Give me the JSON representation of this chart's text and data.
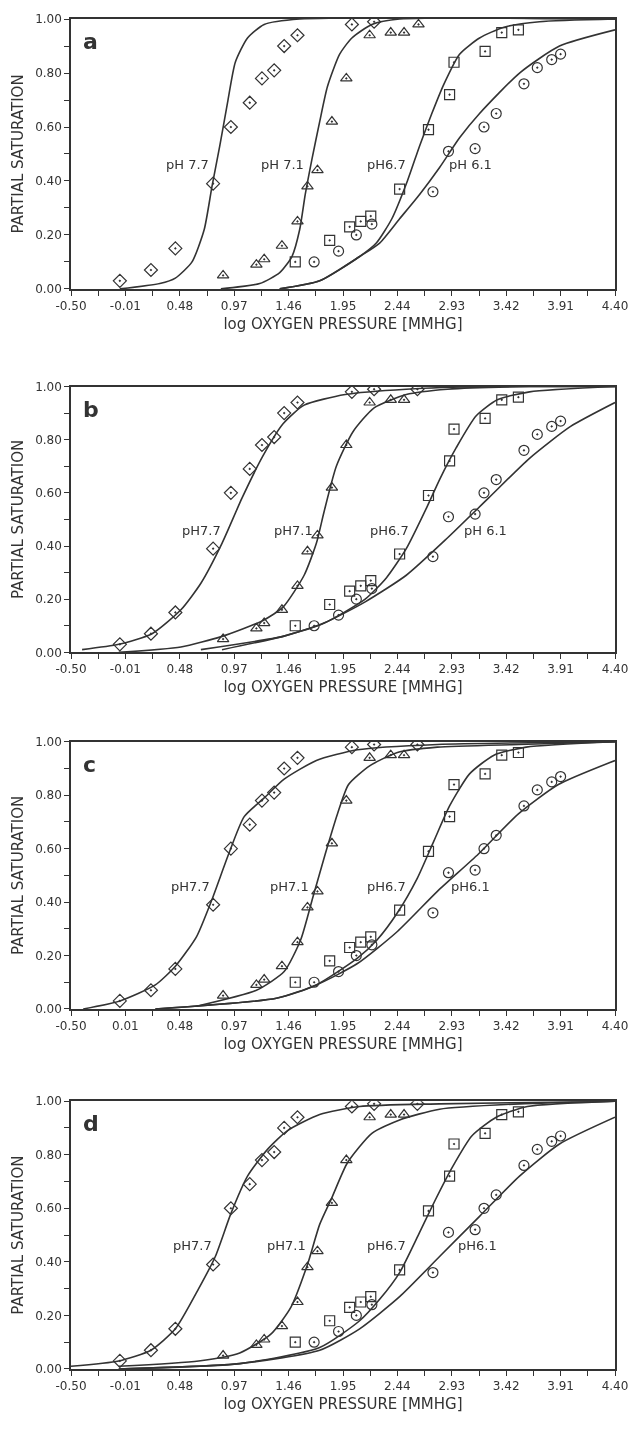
{
  "chart_data": [
    {
      "type": "scatter",
      "xlabel": "log OXYGEN PRESSURE [MMHG]",
      "ylabel": "PARTIAL SATURATION",
      "xlim": [
        -0.5,
        4.4
      ],
      "ylim": [
        0,
        1
      ],
      "xticks": [
        {
          "value": -0.5,
          "label": "-0.50"
        },
        {
          "value": -0.255,
          "label": null
        },
        {
          "value": -0.01,
          "label": "-0.01"
        },
        {
          "value": 0.235,
          "label": null
        },
        {
          "value": 0.48,
          "label": "0.48"
        },
        {
          "value": 0.725,
          "label": null
        },
        {
          "value": 0.97,
          "label": "0.97"
        },
        {
          "value": 1.215,
          "label": null
        },
        {
          "value": 1.46,
          "label": "1.46"
        },
        {
          "value": 1.705,
          "label": null
        },
        {
          "value": 1.95,
          "label": "1.95"
        },
        {
          "value": 2.195,
          "label": null
        },
        {
          "value": 2.44,
          "label": "2.44"
        },
        {
          "value": 2.685,
          "label": null
        },
        {
          "value": 2.93,
          "label": "2.93"
        },
        {
          "value": 3.175,
          "label": null
        },
        {
          "value": 3.42,
          "label": "3.42"
        },
        {
          "value": 3.665,
          "label": null
        },
        {
          "value": 3.91,
          "label": "3.91"
        },
        {
          "value": 4.155,
          "label": null
        },
        {
          "value": 4.4,
          "label": "4.40"
        }
      ],
      "yticks": [
        {
          "value": 0,
          "label": "0.00"
        },
        {
          "value": 0.1,
          "label": null
        },
        {
          "value": 0.2,
          "label": "0.20"
        },
        {
          "value": 0.3,
          "label": null
        },
        {
          "value": 0.4,
          "label": "0.40"
        },
        {
          "value": 0.5,
          "label": null
        },
        {
          "value": 0.6,
          "label": "0.60"
        },
        {
          "value": 0.7,
          "label": null
        },
        {
          "value": 0.8,
          "label": "0.80"
        },
        {
          "value": 0.9,
          "label": null
        },
        {
          "value": 1,
          "label": "1.00"
        }
      ],
      "annotations": [
        "a"
      ],
      "series": [
        {
          "marker": "diamond",
          "color": "#333333",
          "x": [
            -0.06,
            0.22,
            0.44,
            0.78,
            0.94,
            1.11,
            1.22,
            1.33,
            1.42,
            1.54,
            2.03,
            2.23
          ],
          "values": [
            0.03,
            0.07,
            0.15,
            0.39,
            0.6,
            0.69,
            0.78,
            0.81,
            0.9,
            0.94,
            0.98,
            0.99
          ]
        },
        {
          "marker": "triangle",
          "color": "#333333",
          "x": [
            0.87,
            1.17,
            1.24,
            1.4,
            1.54,
            1.63,
            1.72,
            1.85,
            1.98,
            2.19,
            2.38,
            2.5,
            2.63
          ],
          "values": [
            0.05,
            0.09,
            0.11,
            0.16,
            0.25,
            0.38,
            0.44,
            0.62,
            0.78,
            0.94,
            0.95,
            0.95,
            0.98
          ]
        },
        {
          "marker": "square",
          "color": "#333333",
          "x": [
            1.52,
            1.83,
            2.01,
            2.11,
            2.2,
            2.46,
            2.72,
            2.91,
            2.95,
            3.23,
            3.38,
            3.53
          ],
          "values": [
            0.1,
            0.18,
            0.23,
            0.25,
            0.27,
            0.37,
            0.59,
            0.72,
            0.84,
            0.88,
            0.95,
            0.96
          ]
        },
        {
          "marker": "circle",
          "color": "#333333",
          "x": [
            1.69,
            1.91,
            2.07,
            2.21,
            2.76,
            2.9,
            3.14,
            3.22,
            3.33,
            3.58,
            3.7,
            3.83,
            3.91
          ],
          "values": [
            0.1,
            0.14,
            0.2,
            0.24,
            0.36,
            0.51,
            0.52,
            0.6,
            0.65,
            0.76,
            0.82,
            0.85,
            0.87
          ]
        },
        {
          "type": "line",
          "name": "pH 7.7",
          "marker": "none",
          "color": "#333333",
          "x": [
            -0.06,
            0.3,
            0.44,
            0.59,
            0.7,
            0.77,
            0.84,
            0.91,
            0.98,
            1.09,
            1.24,
            1.56,
            4.4
          ],
          "values": [
            0,
            0.02,
            0.04,
            0.1,
            0.22,
            0.38,
            0.53,
            0.69,
            0.84,
            0.93,
            0.98,
            1,
            1
          ]
        },
        {
          "type": "line",
          "name": "pH 7.1",
          "marker": "none",
          "color": "#333333",
          "x": [
            0.85,
            1.2,
            1.38,
            1.49,
            1.56,
            1.61,
            1.67,
            1.74,
            1.81,
            1.92,
            2.03,
            2.21,
            2.46,
            4.4
          ],
          "values": [
            0,
            0.02,
            0.06,
            0.12,
            0.22,
            0.35,
            0.48,
            0.62,
            0.75,
            0.87,
            0.93,
            0.98,
            1,
            1
          ]
        },
        {
          "type": "line",
          "name": "pH6.7",
          "marker": "none",
          "color": "#333333",
          "x": [
            1.38,
            1.74,
            2.1,
            2.25,
            2.39,
            2.53,
            2.64,
            2.75,
            2.86,
            3.0,
            3.18,
            3.4,
            3.72,
            4.4
          ],
          "values": [
            0,
            0.03,
            0.12,
            0.17,
            0.26,
            0.4,
            0.53,
            0.65,
            0.76,
            0.87,
            0.93,
            0.97,
            0.99,
            1
          ]
        },
        {
          "type": "line",
          "name": "pH 6.1",
          "marker": "none",
          "color": "#333333",
          "x": [
            1.38,
            1.74,
            2.1,
            2.28,
            2.46,
            2.64,
            2.82,
            3.0,
            3.18,
            3.54,
            3.9,
            4.4
          ],
          "values": [
            0,
            0.03,
            0.12,
            0.17,
            0.26,
            0.35,
            0.45,
            0.56,
            0.65,
            0.8,
            0.9,
            0.96
          ]
        }
      ]
    },
    {
      "type": "scatter",
      "xlabel": "log OXYGEN PRESSURE [MMHG]",
      "ylabel": "PARTIAL SATURATION",
      "xlim": [
        -0.5,
        4.4
      ],
      "ylim": [
        0,
        1
      ],
      "xticks": [
        {
          "value": -0.5,
          "label": "-0.50"
        },
        {
          "value": -0.255,
          "label": null
        },
        {
          "value": -0.01,
          "label": "-0.01"
        },
        {
          "value": 0.235,
          "label": null
        },
        {
          "value": 0.48,
          "label": "0.48"
        },
        {
          "value": 0.725,
          "label": null
        },
        {
          "value": 0.97,
          "label": "0.97"
        },
        {
          "value": 1.215,
          "label": null
        },
        {
          "value": 1.46,
          "label": "1.46"
        },
        {
          "value": 1.705,
          "label": null
        },
        {
          "value": 1.95,
          "label": "1.95"
        },
        {
          "value": 2.195,
          "label": null
        },
        {
          "value": 2.44,
          "label": "2.44"
        },
        {
          "value": 2.685,
          "label": null
        },
        {
          "value": 2.93,
          "label": "2.93"
        },
        {
          "value": 3.175,
          "label": null
        },
        {
          "value": 3.42,
          "label": "3.42"
        },
        {
          "value": 3.665,
          "label": null
        },
        {
          "value": 3.91,
          "label": "3.91"
        },
        {
          "value": 4.155,
          "label": null
        },
        {
          "value": 4.4,
          "label": "4.40"
        }
      ],
      "yticks": [
        {
          "value": 0,
          "label": "0.00"
        },
        {
          "value": 0.1,
          "label": null
        },
        {
          "value": 0.2,
          "label": "0.20"
        },
        {
          "value": 0.3,
          "label": null
        },
        {
          "value": 0.4,
          "label": "0.40"
        },
        {
          "value": 0.5,
          "label": null
        },
        {
          "value": 0.6,
          "label": "0.60"
        },
        {
          "value": 0.7,
          "label": null
        },
        {
          "value": 0.8,
          "label": "0.80"
        },
        {
          "value": 0.9,
          "label": null
        },
        {
          "value": 1,
          "label": "1.00"
        }
      ],
      "annotations": [
        "b"
      ],
      "series": [
        {
          "marker": "diamond",
          "color": "#333333",
          "x": [
            -0.06,
            0.22,
            0.44,
            0.78,
            0.94,
            1.11,
            1.22,
            1.33,
            1.42,
            1.54,
            2.03,
            2.23,
            2.62
          ],
          "values": [
            0.03,
            0.07,
            0.15,
            0.39,
            0.6,
            0.69,
            0.78,
            0.81,
            0.9,
            0.94,
            0.98,
            0.99,
            0.99
          ]
        },
        {
          "marker": "triangle",
          "color": "#333333",
          "x": [
            0.87,
            1.17,
            1.24,
            1.4,
            1.54,
            1.63,
            1.72,
            1.85,
            1.98,
            2.19,
            2.38,
            2.5
          ],
          "values": [
            0.05,
            0.09,
            0.11,
            0.16,
            0.25,
            0.38,
            0.44,
            0.62,
            0.78,
            0.94,
            0.95,
            0.95
          ]
        },
        {
          "marker": "square",
          "color": "#333333",
          "x": [
            1.52,
            1.83,
            2.01,
            2.11,
            2.2,
            2.46,
            2.72,
            2.91,
            2.95,
            3.23,
            3.38,
            3.53
          ],
          "values": [
            0.1,
            0.18,
            0.23,
            0.25,
            0.27,
            0.37,
            0.59,
            0.72,
            0.84,
            0.88,
            0.95,
            0.96
          ]
        },
        {
          "marker": "circle",
          "color": "#333333",
          "x": [
            1.69,
            1.91,
            2.07,
            2.21,
            2.76,
            2.9,
            3.14,
            3.22,
            3.33,
            3.58,
            3.7,
            3.83,
            3.91
          ],
          "values": [
            0.1,
            0.14,
            0.2,
            0.24,
            0.36,
            0.51,
            0.52,
            0.6,
            0.65,
            0.76,
            0.82,
            0.85,
            0.87
          ]
        },
        {
          "type": "line",
          "name": "pH7.7",
          "marker": "none",
          "color": "#333333",
          "x": [
            -0.4,
            -0.07,
            0.23,
            0.49,
            0.67,
            0.86,
            1.04,
            1.23,
            1.41,
            1.6,
            1.97,
            2.52,
            3.26,
            4.4
          ],
          "values": [
            0.01,
            0.03,
            0.07,
            0.16,
            0.26,
            0.41,
            0.58,
            0.74,
            0.86,
            0.93,
            0.97,
            0.99,
            1,
            1
          ]
        },
        {
          "type": "line",
          "name": "pH7.1",
          "marker": "none",
          "color": "#333333",
          "x": [
            -0.07,
            0.49,
            0.86,
            1.23,
            1.41,
            1.6,
            1.71,
            1.78,
            1.89,
            2.04,
            2.23,
            2.52,
            2.89,
            3.63,
            4.4
          ],
          "values": [
            0,
            0.02,
            0.06,
            0.12,
            0.17,
            0.29,
            0.41,
            0.53,
            0.7,
            0.83,
            0.92,
            0.97,
            0.99,
            1,
            1
          ]
        },
        {
          "type": "line",
          "name": "pH6.7",
          "marker": "none",
          "color": "#333333",
          "x": [
            0.86,
            1.41,
            1.78,
            2.15,
            2.34,
            2.52,
            2.71,
            2.82,
            2.97,
            3.15,
            3.34,
            3.63,
            4.4
          ],
          "values": [
            0.01,
            0.06,
            0.11,
            0.2,
            0.28,
            0.39,
            0.55,
            0.65,
            0.77,
            0.89,
            0.95,
            0.98,
            1
          ]
        },
        {
          "type": "line",
          "name": "pH 6.1",
          "marker": "none",
          "color": "#333333",
          "x": [
            0.67,
            1.41,
            1.78,
            2.15,
            2.52,
            2.89,
            3.26,
            3.63,
            4.0,
            4.4
          ],
          "values": [
            0.01,
            0.06,
            0.11,
            0.19,
            0.29,
            0.43,
            0.58,
            0.73,
            0.85,
            0.94
          ]
        }
      ]
    },
    {
      "type": "scatter",
      "xlabel": "log OXYGEN PRESSURE [MMHG]",
      "ylabel": "PARTIAL SATURATION",
      "xlim": [
        -0.5,
        4.4
      ],
      "ylim": [
        0,
        1
      ],
      "xticks": [
        {
          "value": -0.5,
          "label": "-0.50"
        },
        {
          "value": -0.255,
          "label": null
        },
        {
          "value": -0.01,
          "label": "0.01"
        },
        {
          "value": 0.235,
          "label": null
        },
        {
          "value": 0.48,
          "label": "0.48"
        },
        {
          "value": 0.725,
          "label": null
        },
        {
          "value": 0.97,
          "label": "0.97"
        },
        {
          "value": 1.215,
          "label": null
        },
        {
          "value": 1.46,
          "label": "1.46"
        },
        {
          "value": 1.705,
          "label": null
        },
        {
          "value": 1.95,
          "label": "1.95"
        },
        {
          "value": 2.195,
          "label": null
        },
        {
          "value": 2.44,
          "label": "2.44"
        },
        {
          "value": 2.685,
          "label": null
        },
        {
          "value": 2.93,
          "label": "2.93"
        },
        {
          "value": 3.175,
          "label": null
        },
        {
          "value": 3.42,
          "label": "3.42"
        },
        {
          "value": 3.665,
          "label": null
        },
        {
          "value": 3.91,
          "label": "3.91"
        },
        {
          "value": 4.155,
          "label": null
        },
        {
          "value": 4.4,
          "label": "4.40"
        }
      ],
      "yticks": [
        {
          "value": 0,
          "label": "0.00"
        },
        {
          "value": 0.1,
          "label": null
        },
        {
          "value": 0.2,
          "label": "0.20"
        },
        {
          "value": 0.3,
          "label": null
        },
        {
          "value": 0.4,
          "label": "0.40"
        },
        {
          "value": 0.5,
          "label": null
        },
        {
          "value": 0.6,
          "label": "0.60"
        },
        {
          "value": 0.7,
          "label": null
        },
        {
          "value": 0.8,
          "label": "0.80"
        },
        {
          "value": 0.9,
          "label": null
        },
        {
          "value": 1,
          "label": "1.00"
        }
      ],
      "annotations": [
        "c"
      ],
      "series": [
        {
          "marker": "diamond",
          "color": "#333333",
          "x": [
            -0.06,
            0.22,
            0.44,
            0.78,
            0.94,
            1.11,
            1.22,
            1.33,
            1.42,
            1.54,
            2.03,
            2.23,
            2.62
          ],
          "values": [
            0.03,
            0.07,
            0.15,
            0.39,
            0.6,
            0.69,
            0.78,
            0.81,
            0.9,
            0.94,
            0.98,
            0.99,
            0.99
          ]
        },
        {
          "marker": "triangle",
          "color": "#333333",
          "x": [
            0.87,
            1.17,
            1.24,
            1.4,
            1.54,
            1.63,
            1.72,
            1.85,
            1.98,
            2.19,
            2.38,
            2.5
          ],
          "values": [
            0.05,
            0.09,
            0.11,
            0.16,
            0.25,
            0.38,
            0.44,
            0.62,
            0.78,
            0.94,
            0.95,
            0.95
          ]
        },
        {
          "marker": "square",
          "color": "#333333",
          "x": [
            1.52,
            1.83,
            2.01,
            2.11,
            2.2,
            2.46,
            2.72,
            2.91,
            2.95,
            3.23,
            3.38,
            3.53
          ],
          "values": [
            0.1,
            0.18,
            0.23,
            0.25,
            0.27,
            0.37,
            0.59,
            0.72,
            0.84,
            0.88,
            0.95,
            0.96
          ]
        },
        {
          "marker": "circle",
          "color": "#333333",
          "x": [
            1.69,
            1.91,
            2.07,
            2.21,
            2.76,
            2.9,
            3.14,
            3.22,
            3.33,
            3.58,
            3.7,
            3.83,
            3.91
          ],
          "values": [
            0.1,
            0.14,
            0.2,
            0.24,
            0.36,
            0.51,
            0.52,
            0.6,
            0.65,
            0.76,
            0.82,
            0.85,
            0.87
          ]
        },
        {
          "type": "line",
          "name": "pH7.7",
          "marker": "none",
          "color": "#333333",
          "x": [
            -0.39,
            -0.06,
            0.26,
            0.44,
            0.63,
            0.77,
            0.92,
            1.06,
            1.24,
            1.42,
            1.71,
            2.08,
            2.8,
            4.4
          ],
          "values": [
            0,
            0.03,
            0.09,
            0.16,
            0.27,
            0.41,
            0.58,
            0.72,
            0.79,
            0.86,
            0.93,
            0.97,
            0.99,
            1
          ]
        },
        {
          "type": "line",
          "name": "pH7.1",
          "marker": "none",
          "color": "#333333",
          "x": [
            0.63,
            1.17,
            1.42,
            1.57,
            1.68,
            1.79,
            1.9,
            2.0,
            2.19,
            2.44,
            2.8,
            3.53,
            4.4
          ],
          "values": [
            0.01,
            0.07,
            0.14,
            0.26,
            0.42,
            0.58,
            0.73,
            0.84,
            0.91,
            0.96,
            0.98,
            0.99,
            1
          ]
        },
        {
          "type": "line",
          "name": "pH6.7",
          "marker": "none",
          "color": "#333333",
          "x": [
            0.26,
            1.35,
            1.71,
            2.08,
            2.26,
            2.44,
            2.62,
            2.77,
            2.91,
            3.09,
            3.31,
            3.6,
            4.4
          ],
          "values": [
            0,
            0.04,
            0.09,
            0.19,
            0.26,
            0.36,
            0.49,
            0.63,
            0.76,
            0.88,
            0.95,
            0.98,
            1
          ]
        },
        {
          "type": "line",
          "name": "pH6.1",
          "marker": "none",
          "color": "#333333",
          "x": [
            0.26,
            1.35,
            1.71,
            2.08,
            2.44,
            2.8,
            3.17,
            3.53,
            3.89,
            4.4
          ],
          "values": [
            0,
            0.04,
            0.09,
            0.17,
            0.29,
            0.44,
            0.58,
            0.73,
            0.84,
            0.93
          ]
        }
      ]
    },
    {
      "type": "scatter",
      "xlabel": "log OXYGEN PRESSURE [MMHG]",
      "ylabel": "PARTIAL SATURATION",
      "xlim": [
        -0.5,
        4.4
      ],
      "ylim": [
        0,
        1
      ],
      "xticks": [
        {
          "value": -0.5,
          "label": "-0.50"
        },
        {
          "value": -0.255,
          "label": null
        },
        {
          "value": -0.01,
          "label": "-0.01"
        },
        {
          "value": 0.235,
          "label": null
        },
        {
          "value": 0.48,
          "label": "0.48"
        },
        {
          "value": 0.725,
          "label": null
        },
        {
          "value": 0.97,
          "label": "0.97"
        },
        {
          "value": 1.215,
          "label": null
        },
        {
          "value": 1.46,
          "label": "1.46"
        },
        {
          "value": 1.705,
          "label": null
        },
        {
          "value": 1.95,
          "label": "1.95"
        },
        {
          "value": 2.195,
          "label": null
        },
        {
          "value": 2.44,
          "label": "2.44"
        },
        {
          "value": 2.685,
          "label": null
        },
        {
          "value": 2.93,
          "label": "2.93"
        },
        {
          "value": 3.175,
          "label": null
        },
        {
          "value": 3.42,
          "label": "3.42"
        },
        {
          "value": 3.665,
          "label": null
        },
        {
          "value": 3.91,
          "label": "3.91"
        },
        {
          "value": 4.155,
          "label": null
        },
        {
          "value": 4.4,
          "label": "4.40"
        }
      ],
      "yticks": [
        {
          "value": 0,
          "label": "0.00"
        },
        {
          "value": 0.1,
          "label": null
        },
        {
          "value": 0.2,
          "label": "0.20"
        },
        {
          "value": 0.3,
          "label": null
        },
        {
          "value": 0.4,
          "label": "0.40"
        },
        {
          "value": 0.5,
          "label": null
        },
        {
          "value": 0.6,
          "label": "0.60"
        },
        {
          "value": 0.7,
          "label": null
        },
        {
          "value": 0.8,
          "label": "0.80"
        },
        {
          "value": 0.9,
          "label": null
        },
        {
          "value": 1,
          "label": "1.00"
        }
      ],
      "annotations": [
        "d"
      ],
      "series": [
        {
          "marker": "diamond",
          "color": "#333333",
          "x": [
            -0.06,
            0.22,
            0.44,
            0.78,
            0.94,
            1.11,
            1.22,
            1.33,
            1.42,
            1.54,
            2.03,
            2.23,
            2.62
          ],
          "values": [
            0.03,
            0.07,
            0.15,
            0.39,
            0.6,
            0.69,
            0.78,
            0.81,
            0.9,
            0.94,
            0.98,
            0.99,
            0.99
          ]
        },
        {
          "marker": "triangle",
          "color": "#333333",
          "x": [
            0.87,
            1.17,
            1.24,
            1.4,
            1.54,
            1.63,
            1.72,
            1.85,
            1.98,
            2.19,
            2.38,
            2.5
          ],
          "values": [
            0.05,
            0.09,
            0.11,
            0.16,
            0.25,
            0.38,
            0.44,
            0.62,
            0.78,
            0.94,
            0.95,
            0.95
          ]
        },
        {
          "marker": "square",
          "color": "#333333",
          "x": [
            1.52,
            1.83,
            2.01,
            2.11,
            2.2,
            2.46,
            2.72,
            2.91,
            2.95,
            3.23,
            3.38,
            3.53
          ],
          "values": [
            0.1,
            0.18,
            0.23,
            0.25,
            0.27,
            0.37,
            0.59,
            0.72,
            0.84,
            0.88,
            0.95,
            0.96
          ]
        },
        {
          "marker": "circle",
          "color": "#333333",
          "x": [
            1.69,
            1.91,
            2.07,
            2.21,
            2.76,
            2.9,
            3.14,
            3.22,
            3.33,
            3.58,
            3.7,
            3.83,
            3.91
          ],
          "values": [
            0.1,
            0.14,
            0.2,
            0.24,
            0.36,
            0.51,
            0.52,
            0.6,
            0.65,
            0.76,
            0.82,
            0.85,
            0.87
          ]
        },
        {
          "type": "line",
          "name": "pH7.7",
          "marker": "none",
          "color": "#333333",
          "x": [
            -0.5,
            -0.07,
            0.22,
            0.44,
            0.65,
            0.8,
            0.94,
            1.09,
            1.27,
            1.45,
            1.74,
            2.1,
            2.82,
            4.4
          ],
          "values": [
            0.01,
            0.03,
            0.07,
            0.15,
            0.3,
            0.42,
            0.58,
            0.72,
            0.82,
            0.89,
            0.95,
            0.98,
            0.99,
            1
          ]
        },
        {
          "type": "line",
          "name": "pH7.1",
          "marker": "none",
          "color": "#333333",
          "x": [
            -0.07,
            0.65,
            1.02,
            1.3,
            1.48,
            1.63,
            1.74,
            1.85,
            1.99,
            2.21,
            2.46,
            2.82,
            3.54,
            4.4
          ],
          "values": [
            0.01,
            0.03,
            0.06,
            0.13,
            0.23,
            0.39,
            0.54,
            0.64,
            0.77,
            0.88,
            0.93,
            0.97,
            0.99,
            1
          ]
        },
        {
          "type": "line",
          "name": "pH6.7",
          "marker": "none",
          "color": "#333333",
          "x": [
            -0.07,
            1.02,
            1.74,
            2.1,
            2.28,
            2.46,
            2.64,
            2.78,
            2.93,
            3.11,
            3.33,
            3.61,
            4.4
          ],
          "values": [
            0,
            0.02,
            0.08,
            0.18,
            0.26,
            0.36,
            0.51,
            0.63,
            0.75,
            0.87,
            0.94,
            0.98,
            1
          ]
        },
        {
          "type": "line",
          "name": "pH6.1",
          "marker": "none",
          "color": "#333333",
          "x": [
            -0.07,
            1.02,
            1.74,
            2.1,
            2.46,
            2.82,
            3.18,
            3.54,
            3.9,
            4.4
          ],
          "values": [
            0,
            0.02,
            0.07,
            0.15,
            0.27,
            0.42,
            0.57,
            0.72,
            0.84,
            0.94
          ]
        }
      ]
    }
  ]
}
